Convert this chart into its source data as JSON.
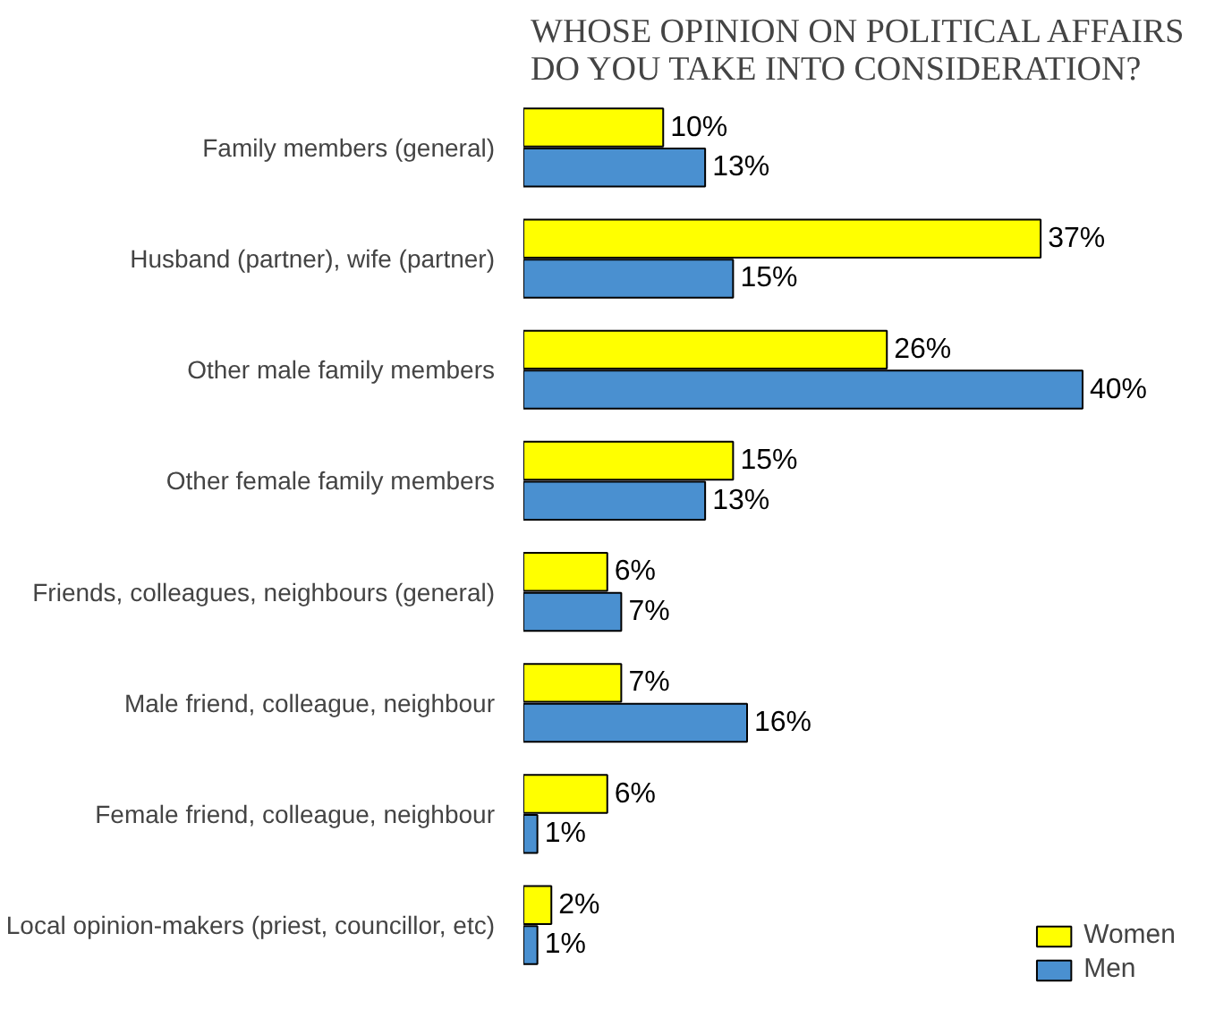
{
  "chart_data": {
    "type": "bar",
    "orientation": "horizontal",
    "title": "WHOSE OPINION ON POLITICAL AFFAIRS\nDO YOU TAKE INTO CONSIDERATION?",
    "categories": [
      "Family members (general)",
      "Husband (partner), wife (partner)",
      "Other male family members",
      "Other female family members",
      "Friends, colleagues, neighbours (general)",
      "Male friend, colleague, neighbour",
      "Female friend, colleague, neighbour",
      "Local opinion-makers (priest, councillor, etc)"
    ],
    "series": [
      {
        "name": "Women",
        "color": "#ffff00",
        "values": [
          10,
          37,
          26,
          15,
          6,
          7,
          6,
          2
        ],
        "value_labels": [
          "10%",
          "37%",
          "26%",
          "15%",
          "6%",
          "7%",
          "6%",
          "2%"
        ]
      },
      {
        "name": "Men",
        "color": "#4a90d0",
        "values": [
          13,
          15,
          40,
          13,
          7,
          16,
          1,
          1
        ],
        "value_labels": [
          "13%",
          "15%",
          "40%",
          "13%",
          "7%",
          "16%",
          "1%",
          "1%"
        ]
      }
    ],
    "legend": "bottom right",
    "grid": false
  }
}
